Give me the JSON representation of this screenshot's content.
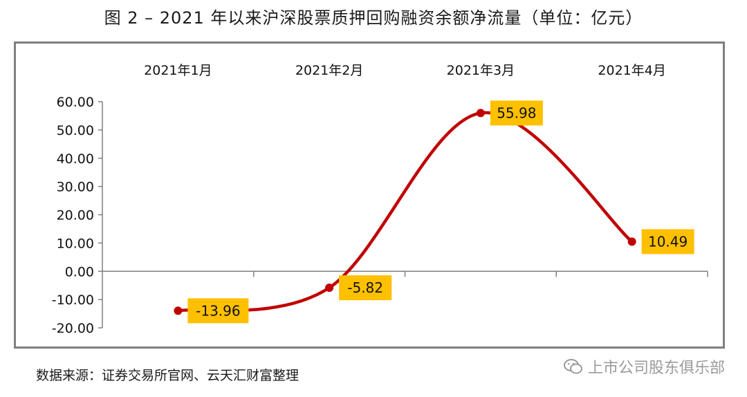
{
  "title": "图 2 – 2021 年以来沪深股票质押回购融资余额净流量（单位：亿元）",
  "source": "数据来源：证券交易所官网、云天汇财富整理",
  "watermark": "上市公司股东俱乐部",
  "colors": {
    "line": "#c00000",
    "label_bg": "#ffc000",
    "frame": "#7f7f7f",
    "axis": "#7f7f7f"
  },
  "chart_data": {
    "type": "line",
    "title": "图 2 – 2021 年以来沪深股票质押回购融资余额净流量（单位：亿元）",
    "categories": [
      "2021年1月",
      "2021年2月",
      "2021年3月",
      "2021年4月"
    ],
    "values": [
      -13.96,
      -5.82,
      55.98,
      10.49
    ],
    "data_labels": [
      "-13.96",
      "-5.82",
      "55.98",
      "10.49"
    ],
    "ylim": [
      -20,
      60
    ],
    "yticks": [
      "60.00",
      "50.00",
      "40.00",
      "30.00",
      "20.00",
      "10.00",
      "0.00",
      "-10.00",
      "-20.00"
    ],
    "category_axis_position": "top",
    "smooth": true,
    "grid": false,
    "legend": "none"
  }
}
